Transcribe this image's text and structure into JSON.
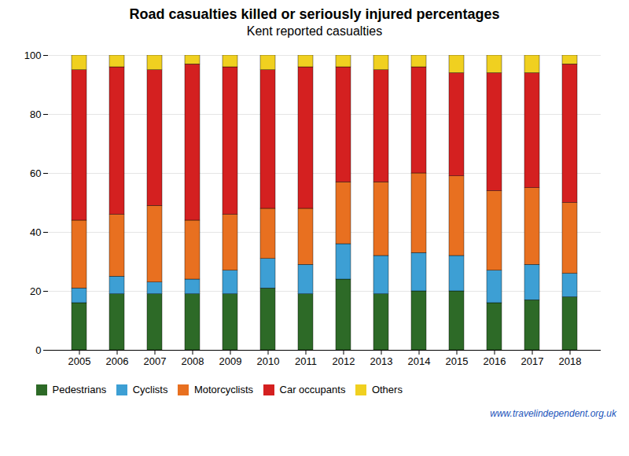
{
  "chart_data": {
    "type": "bar",
    "title": "Road casualties killed or seriously injured percentages",
    "subtitle": "Kent reported casualties",
    "categories": [
      "2005",
      "2006",
      "2007",
      "2008",
      "2009",
      "2010",
      "2011",
      "2012",
      "2013",
      "2014",
      "2015",
      "2016",
      "2017",
      "2018"
    ],
    "series": [
      {
        "name": "Pedestrians",
        "color": "#2d6a27",
        "values": [
          16,
          19,
          19,
          19,
          19,
          21,
          19,
          24,
          19,
          20,
          20,
          16,
          17,
          18
        ]
      },
      {
        "name": "Cyclists",
        "color": "#3d9fd4",
        "values": [
          5,
          6,
          4,
          5,
          8,
          10,
          10,
          12,
          13,
          13,
          12,
          11,
          12,
          8
        ]
      },
      {
        "name": "Motorcyclists",
        "color": "#e87020",
        "values": [
          23,
          21,
          26,
          20,
          19,
          17,
          19,
          21,
          25,
          27,
          27,
          27,
          26,
          24
        ]
      },
      {
        "name": "Car occupants",
        "color": "#d42020",
        "values": [
          51,
          50,
          46,
          53,
          50,
          47,
          48,
          39,
          38,
          36,
          35,
          40,
          39,
          47
        ]
      },
      {
        "name": "Others",
        "color": "#f0d020",
        "values": [
          5,
          4,
          5,
          3,
          4,
          5,
          4,
          4,
          5,
          4,
          6,
          6,
          6,
          3
        ]
      }
    ],
    "ylim": [
      0,
      100
    ],
    "yticks": [
      0,
      20,
      40,
      60,
      80,
      100
    ],
    "stacked": true,
    "grid": true,
    "legend": "lower left",
    "annotations": [
      "www.travelindependent.org.uk"
    ]
  }
}
